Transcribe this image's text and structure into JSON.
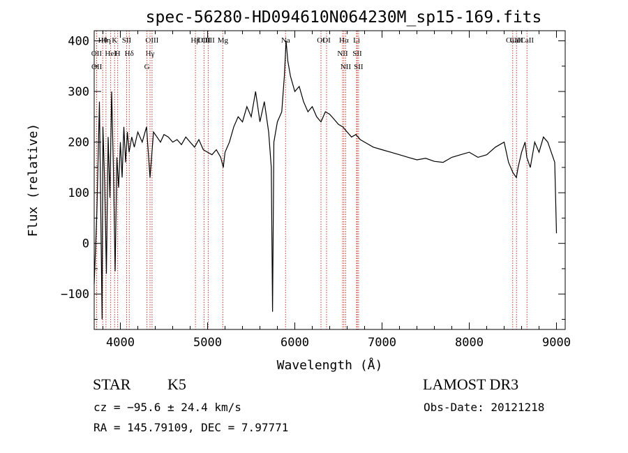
{
  "chart_data": {
    "type": "line",
    "title": "spec-56280-HD094610N064230M_sp15-169.fits",
    "xlabel": "Wavelength (Å)",
    "ylabel": "Flux (relative)",
    "xlim": [
      3700,
      9100
    ],
    "ylim": [
      -170,
      420
    ],
    "xticks": [
      4000,
      5000,
      6000,
      7000,
      8000,
      9000
    ],
    "yticks": [
      -100,
      0,
      100,
      200,
      300,
      400
    ],
    "grid": false,
    "series": [
      {
        "x": [
          3700,
          3730,
          3760,
          3790,
          3800,
          3820,
          3840,
          3860,
          3880,
          3900,
          3920,
          3940,
          3960,
          3980,
          4000,
          4020,
          4040,
          4060,
          4080,
          4100,
          4130,
          4160,
          4200,
          4250,
          4300,
          4340,
          4380,
          4420,
          4460,
          4500,
          4550,
          4600,
          4650,
          4700,
          4750,
          4800,
          4850,
          4900,
          4950,
          5000,
          5050,
          5100,
          5150,
          5180,
          5200,
          5250,
          5300,
          5350,
          5400,
          5450,
          5500,
          5550,
          5600,
          5650,
          5700,
          5730,
          5745,
          5760,
          5800,
          5850,
          5880,
          5900,
          5920,
          5950,
          6000,
          6050,
          6100,
          6150,
          6200,
          6250,
          6300,
          6350,
          6400,
          6450,
          6500,
          6550,
          6600,
          6650,
          6700,
          6750,
          6800,
          6900,
          7000,
          7100,
          7200,
          7300,
          7400,
          7500,
          7600,
          7700,
          7800,
          7900,
          8000,
          8100,
          8200,
          8300,
          8400,
          8450,
          8500,
          8540,
          8560,
          8600,
          8640,
          8660,
          8700,
          8750,
          8800,
          8850,
          8900,
          8950,
          8980,
          9000
        ],
        "y": [
          -80,
          60,
          280,
          -150,
          230,
          120,
          -60,
          210,
          90,
          300,
          150,
          -55,
          170,
          110,
          200,
          130,
          230,
          160,
          220,
          180,
          210,
          190,
          220,
          200,
          230,
          130,
          220,
          210,
          200,
          215,
          210,
          200,
          205,
          195,
          210,
          200,
          190,
          205,
          185,
          180,
          175,
          185,
          170,
          150,
          180,
          200,
          230,
          250,
          240,
          270,
          250,
          300,
          240,
          280,
          220,
          150,
          -135,
          200,
          240,
          260,
          330,
          400,
          360,
          330,
          300,
          310,
          280,
          260,
          270,
          250,
          240,
          260,
          255,
          245,
          235,
          230,
          220,
          210,
          215,
          205,
          200,
          190,
          185,
          180,
          175,
          170,
          165,
          168,
          162,
          160,
          170,
          175,
          180,
          170,
          175,
          190,
          200,
          160,
          140,
          130,
          150,
          180,
          200,
          170,
          150,
          200,
          180,
          210,
          200,
          175,
          160,
          20
        ],
        "color": "#000000"
      }
    ],
    "line_markers": [
      {
        "label": "Hθ",
        "x": 3798
      },
      {
        "label": "OII",
        "x": 3727
      },
      {
        "label": "OII",
        "x": 3729
      },
      {
        "label": "Hη",
        "x": 3835
      },
      {
        "label": "K",
        "x": 3934
      },
      {
        "label": "HeI",
        "x": 3889
      },
      {
        "label": "H",
        "x": 3969
      },
      {
        "label": "SII",
        "x": 4072
      },
      {
        "label": "Hδ",
        "x": 4102
      },
      {
        "label": "OIII",
        "x": 4363
      },
      {
        "label": "Hγ",
        "x": 4340
      },
      {
        "label": "G",
        "x": 4305
      },
      {
        "label": "Hβ",
        "x": 4861
      },
      {
        "label": "OIII",
        "x": 4959
      },
      {
        "label": "OIII",
        "x": 5007
      },
      {
        "label": "Mg",
        "x": 5175
      },
      {
        "label": "Na",
        "x": 5894
      },
      {
        "label": "OI",
        "x": 6300
      },
      {
        "label": "OI",
        "x": 6364
      },
      {
        "label": "Hα",
        "x": 6563
      },
      {
        "label": "NII",
        "x": 6548
      },
      {
        "label": "NII",
        "x": 6583
      },
      {
        "label": "Li",
        "x": 6708
      },
      {
        "label": "SII",
        "x": 6716
      },
      {
        "label": "SII",
        "x": 6731
      },
      {
        "label": "CaII",
        "x": 8498
      },
      {
        "label": "CaII",
        "x": 8542
      },
      {
        "label": "CaII",
        "x": 8662
      }
    ]
  },
  "footer": {
    "class_label": "STAR",
    "subclass": "K5",
    "survey": "LAMOST DR3",
    "cz": "cz = −95.6 ± 24.4 km/s",
    "obs_date": "Obs-Date: 20121218",
    "radec": "RA = 145.79109, DEC =    7.97771"
  }
}
